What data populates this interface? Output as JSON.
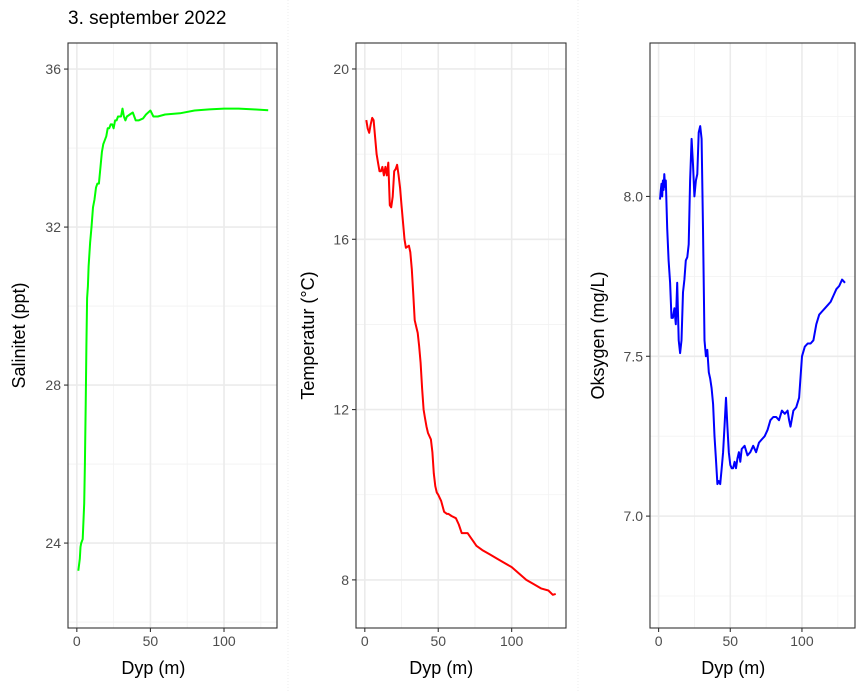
{
  "figure": {
    "title": "3. september 2022",
    "background": "#ffffff",
    "panel_border_color": "#333333",
    "grid_major_color": "#ebebeb",
    "grid_minor_color": "#f2f2f2",
    "tick_label_color": "#4d4d4d"
  },
  "chart_data": [
    {
      "type": "line",
      "title": "3. september 2022",
      "xlabel": "Dyp (m)",
      "ylabel": "Salinitet (ppt)",
      "color": "#00ff00",
      "xlim": [
        -6,
        136
      ],
      "ylim": [
        21.85,
        36.66
      ],
      "xticks": [
        0,
        50,
        100
      ],
      "xtick_labels": [
        "0",
        "50",
        "100"
      ],
      "xminor": [
        25,
        75,
        125
      ],
      "yticks": [
        24,
        28,
        32,
        36
      ],
      "ytick_labels": [
        "24",
        "28",
        "32",
        "36"
      ],
      "yminor": [
        22,
        26,
        30,
        34
      ],
      "grid": true,
      "x": [
        1,
        2,
        2.5,
        3,
        4,
        5,
        5.5,
        6,
        6.5,
        7,
        7.5,
        8,
        9,
        10,
        11,
        12,
        13,
        14,
        15,
        16,
        17,
        18,
        19,
        20,
        21,
        22,
        23,
        24,
        25,
        26,
        27,
        28,
        30,
        31,
        32,
        33,
        34,
        36,
        38,
        40,
        42,
        45,
        47,
        50,
        52,
        55,
        60,
        70,
        80,
        90,
        100,
        105,
        110,
        120,
        130
      ],
      "values": [
        23.3,
        23.6,
        23.9,
        24.0,
        24.1,
        25.0,
        26.0,
        27.5,
        29.0,
        30.2,
        30.5,
        31.0,
        31.6,
        32.0,
        32.5,
        32.7,
        33.0,
        33.1,
        33.1,
        33.5,
        33.9,
        34.1,
        34.2,
        34.3,
        34.5,
        34.5,
        34.6,
        34.6,
        34.5,
        34.7,
        34.7,
        34.8,
        34.8,
        35.0,
        34.8,
        34.7,
        34.8,
        34.85,
        34.9,
        34.7,
        34.7,
        34.75,
        34.85,
        34.95,
        34.8,
        34.8,
        34.85,
        34.88,
        34.95,
        34.98,
        35.0,
        35.0,
        35.0,
        34.98,
        34.96
      ]
    },
    {
      "type": "line",
      "xlabel": "Dyp (m)",
      "ylabel": "Temperatur (°C)",
      "color": "#ff0000",
      "xlim": [
        -6,
        137
      ],
      "ylim": [
        6.87,
        20.61
      ],
      "xticks": [
        0,
        50,
        100
      ],
      "xtick_labels": [
        "0",
        "50",
        "100"
      ],
      "xminor": [
        25,
        75,
        125
      ],
      "yticks": [
        8,
        12,
        16,
        20
      ],
      "ytick_labels": [
        "8",
        "12",
        "16",
        "20"
      ],
      "yminor": [
        10,
        14,
        18
      ],
      "grid": true,
      "x": [
        1,
        2,
        3,
        4,
        5,
        6,
        7,
        8,
        9,
        10,
        11,
        12,
        13,
        14,
        15,
        16,
        17,
        18,
        19,
        20,
        21,
        22,
        23,
        24,
        25,
        26,
        27,
        28,
        30,
        31,
        32,
        33,
        34,
        35,
        36,
        37,
        38,
        39,
        40,
        41,
        42,
        43,
        45,
        46,
        47,
        48,
        49,
        50,
        52,
        54,
        56,
        57,
        59,
        62,
        64,
        66,
        70,
        72,
        74,
        76,
        80,
        85,
        90,
        95,
        100,
        105,
        110,
        115,
        120,
        125,
        128,
        130
      ],
      "values": [
        18.8,
        18.6,
        18.5,
        18.7,
        18.85,
        18.8,
        18.4,
        18.0,
        17.8,
        17.6,
        17.6,
        17.7,
        17.5,
        17.7,
        17.5,
        17.8,
        16.8,
        16.75,
        17.0,
        17.6,
        17.65,
        17.75,
        17.5,
        17.2,
        16.8,
        16.4,
        16.0,
        15.8,
        15.85,
        15.7,
        15.3,
        14.7,
        14.1,
        13.95,
        13.8,
        13.5,
        13.1,
        12.5,
        12.0,
        11.8,
        11.6,
        11.45,
        11.3,
        11.0,
        10.5,
        10.2,
        10.05,
        10.0,
        9.85,
        9.6,
        9.55,
        9.55,
        9.5,
        9.45,
        9.3,
        9.1,
        9.1,
        9.0,
        8.9,
        8.8,
        8.7,
        8.6,
        8.5,
        8.4,
        8.3,
        8.15,
        8.0,
        7.9,
        7.8,
        7.75,
        7.65,
        7.67
      ]
    },
    {
      "type": "line",
      "xlabel": "Dyp (m)",
      "ylabel": "Oksygen (mg/L)",
      "color": "#0000ff",
      "xlim": [
        -6,
        137
      ],
      "ylim": [
        6.65,
        8.48
      ],
      "xticks": [
        0,
        50,
        100
      ],
      "xtick_labels": [
        "0",
        "50",
        "100"
      ],
      "xminor": [
        25,
        75,
        125
      ],
      "yticks": [
        7.0,
        7.5,
        8.0
      ],
      "ytick_labels": [
        "7.0",
        "7.5",
        "8.0"
      ],
      "yminor": [
        6.75,
        7.25,
        7.75,
        8.25
      ],
      "grid": true,
      "x": [
        1,
        1.5,
        2,
        2.5,
        3,
        3.5,
        4,
        4.5,
        5,
        6,
        7,
        8,
        9,
        10,
        11,
        12,
        13,
        14,
        15,
        16,
        17,
        18,
        19,
        20,
        21,
        22,
        23,
        24,
        25,
        26,
        27,
        28,
        29,
        30,
        31,
        32,
        33,
        34,
        35,
        36,
        37,
        38,
        39,
        40,
        41,
        42,
        43,
        44,
        45,
        46,
        47,
        48,
        49,
        50,
        51,
        52,
        53,
        54,
        55,
        56,
        57,
        58,
        60,
        62,
        64,
        66,
        68,
        70,
        72,
        74,
        76,
        78,
        80,
        82,
        84,
        86,
        88,
        90,
        91,
        92,
        94,
        96,
        98,
        100,
        102,
        104,
        106,
        108,
        110,
        112,
        114,
        116,
        118,
        120,
        122,
        124,
        126,
        128,
        130
      ],
      "values": [
        7.99,
        8.02,
        8.04,
        8.0,
        8.05,
        8.02,
        8.07,
        8.03,
        8.05,
        7.9,
        7.8,
        7.73,
        7.62,
        7.62,
        7.65,
        7.6,
        7.73,
        7.55,
        7.51,
        7.55,
        7.7,
        7.74,
        7.8,
        7.81,
        7.85,
        8.05,
        8.18,
        8.1,
        8.0,
        8.05,
        8.07,
        8.2,
        8.22,
        8.18,
        7.9,
        7.55,
        7.5,
        7.52,
        7.45,
        7.43,
        7.4,
        7.35,
        7.25,
        7.18,
        7.1,
        7.11,
        7.1,
        7.15,
        7.2,
        7.28,
        7.37,
        7.28,
        7.2,
        7.16,
        7.15,
        7.15,
        7.17,
        7.15,
        7.18,
        7.2,
        7.17,
        7.21,
        7.22,
        7.19,
        7.2,
        7.22,
        7.2,
        7.23,
        7.24,
        7.25,
        7.27,
        7.3,
        7.31,
        7.31,
        7.3,
        7.33,
        7.32,
        7.33,
        7.3,
        7.28,
        7.33,
        7.34,
        7.37,
        7.5,
        7.53,
        7.54,
        7.54,
        7.55,
        7.6,
        7.63,
        7.64,
        7.65,
        7.66,
        7.67,
        7.69,
        7.71,
        7.72,
        7.74,
        7.73
      ]
    }
  ],
  "layout_panels": [
    {
      "px": [
        68,
        277
      ],
      "py": [
        43,
        628
      ],
      "sep_after": 288
    },
    {
      "px": [
        356,
        566
      ],
      "py": [
        43,
        628
      ],
      "sep_after": 578
    },
    {
      "px": [
        650,
        855
      ],
      "py": [
        43,
        628
      ],
      "sep_after": null
    }
  ]
}
